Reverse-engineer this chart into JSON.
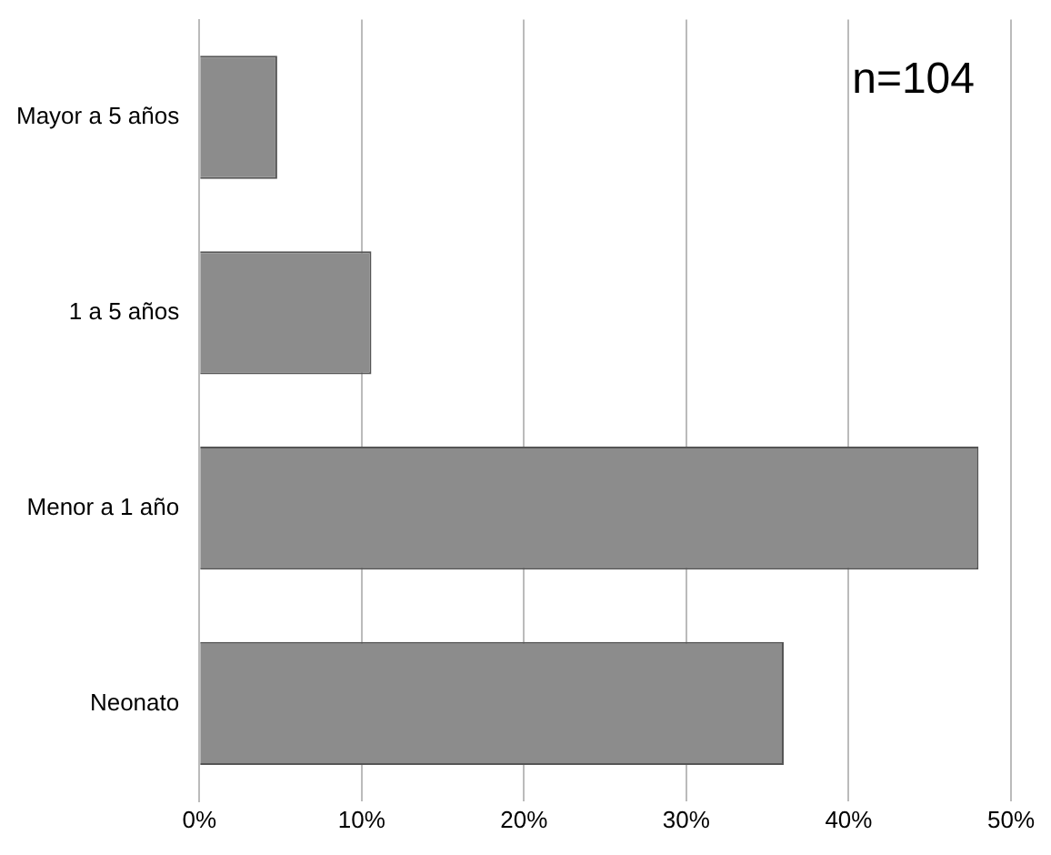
{
  "chart_data": {
    "type": "bar",
    "orientation": "horizontal",
    "categories": [
      "Mayor a 5 años",
      "1 a 5 años",
      "Menor a 1 año",
      "Neonato"
    ],
    "values": [
      4.8,
      10.6,
      48,
      36
    ],
    "color": "#8c8c8c",
    "xlim": [
      0,
      50
    ],
    "xticks": [
      {
        "value": 0,
        "label": "0%"
      },
      {
        "value": 10,
        "label": "10%"
      },
      {
        "value": 20,
        "label": "20%"
      },
      {
        "value": 30,
        "label": "30%"
      },
      {
        "value": 40,
        "label": "40%"
      },
      {
        "value": 50,
        "label": "50%"
      }
    ],
    "grid": "x",
    "annotations": [
      "n=104"
    ]
  }
}
